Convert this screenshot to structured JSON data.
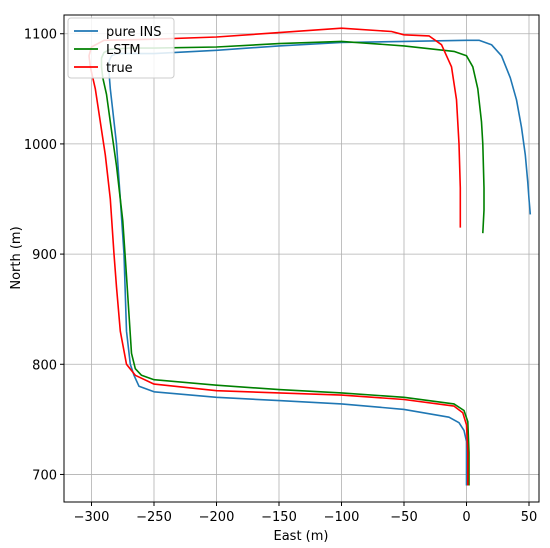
{
  "chart_data": {
    "type": "line",
    "title": "",
    "xlabel": "East (m)",
    "ylabel": "North (m)",
    "xlim": [
      -322,
      58
    ],
    "ylim": [
      675,
      1117
    ],
    "xticks": [
      -300,
      -250,
      -200,
      -150,
      -100,
      -50,
      0,
      50
    ],
    "yticks": [
      700,
      800,
      900,
      1000,
      1100
    ],
    "xtick_labels": [
      "−300",
      "−250",
      "−200",
      "−150",
      "−100",
      "−50",
      "0",
      "50"
    ],
    "ytick_labels": [
      "700",
      "800",
      "900",
      "1000",
      "1100"
    ],
    "grid": true,
    "legend_position": "top-left",
    "series": [
      {
        "name": "pure INS",
        "color": "#1f77b4",
        "x": [
          0,
          0,
          -2,
          -6,
          -14,
          -50,
          -100,
          -150,
          -200,
          -250,
          -262,
          -266,
          -269,
          -272,
          -274,
          -277,
          -280,
          -283,
          -285,
          -286,
          -286,
          -284,
          -280,
          -270,
          -250,
          -200,
          -150,
          -100,
          -50,
          0,
          10,
          20,
          28,
          35,
          40,
          44,
          47,
          49,
          50,
          51
        ],
        "y": [
          690,
          730,
          740,
          747,
          752,
          759,
          764,
          767,
          770,
          775,
          780,
          790,
          800,
          830,
          900,
          950,
          1000,
          1030,
          1050,
          1065,
          1075,
          1080,
          1082,
          1082,
          1082,
          1085,
          1089,
          1092,
          1093,
          1094,
          1094,
          1090,
          1080,
          1060,
          1040,
          1015,
          990,
          965,
          950,
          936
        ]
      },
      {
        "name": "LSTM",
        "color": "#008000",
        "x": [
          2,
          2,
          1,
          -2,
          -10,
          -50,
          -100,
          -150,
          -200,
          -250,
          -260,
          -265,
          -268,
          -272,
          -275,
          -280,
          -285,
          -288,
          -291,
          -292,
          -292,
          -290,
          -285,
          -270,
          -250,
          -200,
          -150,
          -100,
          -50,
          -10,
          0,
          5,
          9,
          12,
          13,
          14,
          14,
          13
        ],
        "y": [
          690,
          720,
          748,
          758,
          764,
          770,
          774,
          777,
          781,
          786,
          790,
          796,
          810,
          880,
          930,
          980,
          1020,
          1045,
          1060,
          1070,
          1078,
          1083,
          1086,
          1087,
          1087,
          1088,
          1091,
          1093,
          1089,
          1084,
          1080,
          1070,
          1050,
          1020,
          1000,
          960,
          940,
          919
        ]
      },
      {
        "name": "true",
        "color": "#ff0000",
        "x": [
          1,
          1,
          0,
          -3,
          -10,
          -50,
          -100,
          -150,
          -200,
          -250,
          -265,
          -272,
          -277,
          -280,
          -282,
          -285,
          -289,
          -293,
          -297,
          -301,
          -302,
          -300,
          -290,
          -250,
          -200,
          -150,
          -100,
          -60,
          -50,
          -30,
          -20,
          -12,
          -8,
          -6,
          -5,
          -5
        ],
        "y": [
          690,
          720,
          745,
          756,
          762,
          768,
          772,
          774,
          776,
          782,
          790,
          800,
          830,
          870,
          900,
          950,
          990,
          1020,
          1050,
          1070,
          1080,
          1088,
          1094,
          1095,
          1097,
          1101,
          1105,
          1102,
          1099,
          1098,
          1090,
          1070,
          1040,
          1000,
          960,
          924
        ]
      }
    ]
  }
}
